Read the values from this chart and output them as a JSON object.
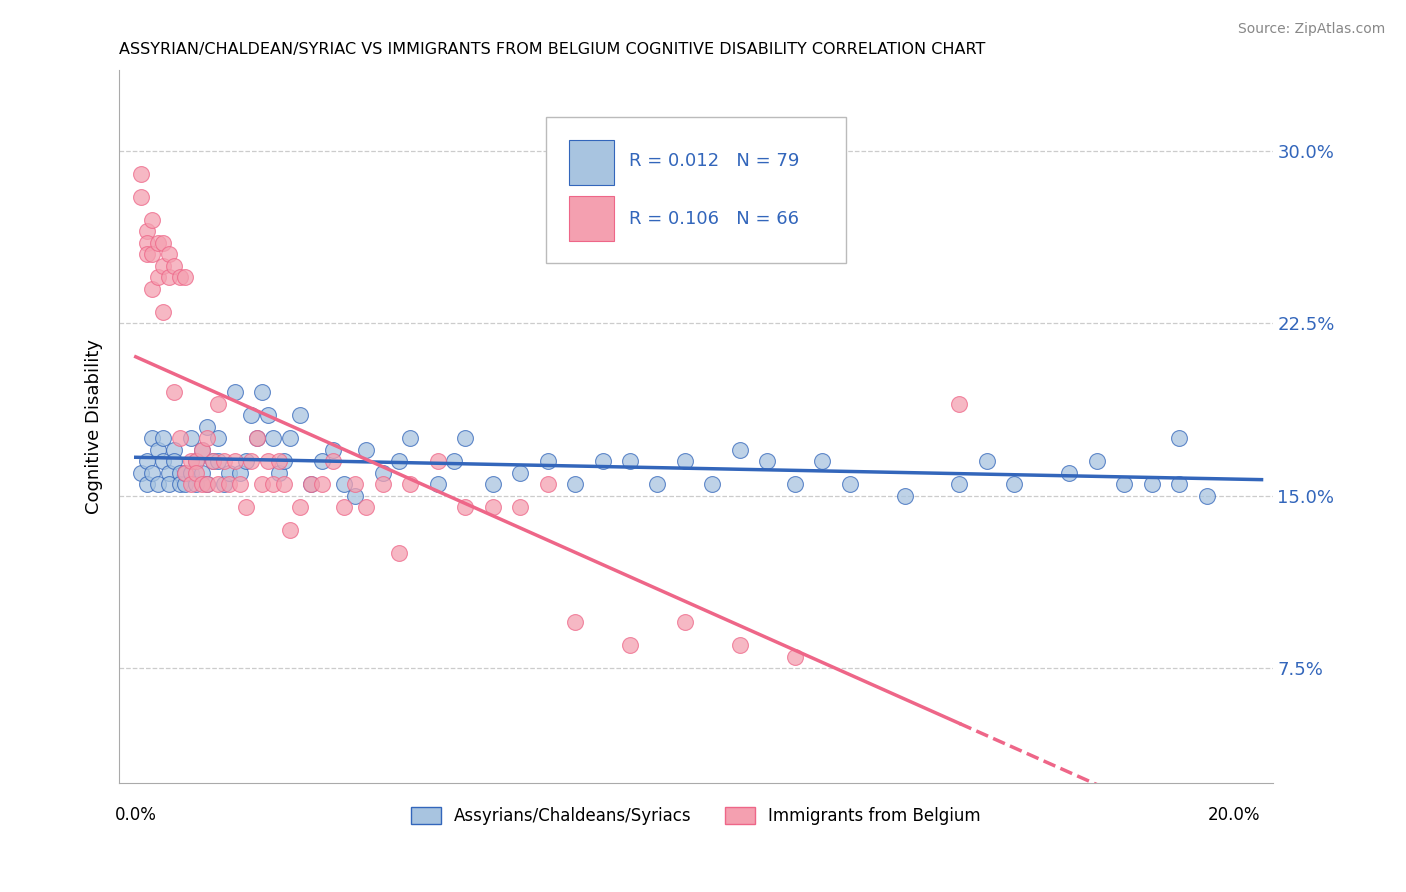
{
  "title": "ASSYRIAN/CHALDEAN/SYRIAC VS IMMIGRANTS FROM BELGIUM COGNITIVE DISABILITY CORRELATION CHART",
  "source": "Source: ZipAtlas.com",
  "ylabel": "Cognitive Disability",
  "yticks": [
    "7.5%",
    "15.0%",
    "22.5%",
    "30.0%"
  ],
  "ytick_vals": [
    0.075,
    0.15,
    0.225,
    0.3
  ],
  "xlim": [
    -0.003,
    0.207
  ],
  "ylim": [
    0.025,
    0.335
  ],
  "legend_R1": "0.012",
  "legend_N1": "79",
  "legend_R2": "0.106",
  "legend_N2": "66",
  "color_blue": "#A8C4E0",
  "color_pink": "#F4A0B0",
  "trendline_blue": "#3366BB",
  "trendline_pink": "#EE6688",
  "grid_color": "#CCCCCC",
  "background": "#FFFFFF",
  "blue_x": [
    0.001,
    0.002,
    0.002,
    0.003,
    0.003,
    0.004,
    0.004,
    0.005,
    0.005,
    0.006,
    0.006,
    0.007,
    0.007,
    0.008,
    0.008,
    0.009,
    0.009,
    0.01,
    0.01,
    0.011,
    0.011,
    0.012,
    0.012,
    0.013,
    0.013,
    0.014,
    0.015,
    0.015,
    0.016,
    0.017,
    0.018,
    0.019,
    0.02,
    0.021,
    0.022,
    0.023,
    0.024,
    0.025,
    0.026,
    0.027,
    0.028,
    0.03,
    0.032,
    0.034,
    0.036,
    0.038,
    0.04,
    0.042,
    0.045,
    0.048,
    0.05,
    0.055,
    0.058,
    0.06,
    0.065,
    0.07,
    0.075,
    0.08,
    0.085,
    0.09,
    0.095,
    0.1,
    0.105,
    0.11,
    0.115,
    0.12,
    0.125,
    0.13,
    0.14,
    0.15,
    0.155,
    0.16,
    0.17,
    0.175,
    0.18,
    0.185,
    0.19,
    0.195,
    0.19
  ],
  "blue_y": [
    0.16,
    0.165,
    0.155,
    0.175,
    0.16,
    0.17,
    0.155,
    0.175,
    0.165,
    0.16,
    0.155,
    0.17,
    0.165,
    0.16,
    0.155,
    0.155,
    0.16,
    0.16,
    0.175,
    0.155,
    0.165,
    0.16,
    0.17,
    0.18,
    0.155,
    0.165,
    0.165,
    0.175,
    0.155,
    0.16,
    0.195,
    0.16,
    0.165,
    0.185,
    0.175,
    0.195,
    0.185,
    0.175,
    0.16,
    0.165,
    0.175,
    0.185,
    0.155,
    0.165,
    0.17,
    0.155,
    0.15,
    0.17,
    0.16,
    0.165,
    0.175,
    0.155,
    0.165,
    0.175,
    0.155,
    0.16,
    0.165,
    0.155,
    0.165,
    0.165,
    0.155,
    0.165,
    0.155,
    0.17,
    0.165,
    0.155,
    0.165,
    0.155,
    0.15,
    0.155,
    0.165,
    0.155,
    0.16,
    0.165,
    0.155,
    0.155,
    0.155,
    0.15,
    0.175
  ],
  "pink_x": [
    0.001,
    0.001,
    0.002,
    0.002,
    0.002,
    0.003,
    0.003,
    0.003,
    0.004,
    0.004,
    0.005,
    0.005,
    0.005,
    0.006,
    0.006,
    0.007,
    0.007,
    0.008,
    0.008,
    0.009,
    0.009,
    0.01,
    0.01,
    0.011,
    0.011,
    0.012,
    0.012,
    0.013,
    0.013,
    0.014,
    0.015,
    0.015,
    0.016,
    0.017,
    0.018,
    0.019,
    0.02,
    0.021,
    0.022,
    0.023,
    0.024,
    0.025,
    0.026,
    0.027,
    0.028,
    0.03,
    0.032,
    0.034,
    0.036,
    0.038,
    0.04,
    0.042,
    0.045,
    0.048,
    0.05,
    0.055,
    0.06,
    0.065,
    0.07,
    0.075,
    0.08,
    0.09,
    0.1,
    0.11,
    0.12,
    0.15
  ],
  "pink_y": [
    0.28,
    0.29,
    0.265,
    0.26,
    0.255,
    0.24,
    0.255,
    0.27,
    0.245,
    0.26,
    0.25,
    0.26,
    0.23,
    0.245,
    0.255,
    0.25,
    0.195,
    0.175,
    0.245,
    0.245,
    0.16,
    0.165,
    0.155,
    0.165,
    0.16,
    0.155,
    0.17,
    0.175,
    0.155,
    0.165,
    0.19,
    0.155,
    0.165,
    0.155,
    0.165,
    0.155,
    0.145,
    0.165,
    0.175,
    0.155,
    0.165,
    0.155,
    0.165,
    0.155,
    0.135,
    0.145,
    0.155,
    0.155,
    0.165,
    0.145,
    0.155,
    0.145,
    0.155,
    0.125,
    0.155,
    0.165,
    0.145,
    0.145,
    0.145,
    0.155,
    0.095,
    0.085,
    0.095,
    0.085,
    0.08,
    0.19
  ]
}
